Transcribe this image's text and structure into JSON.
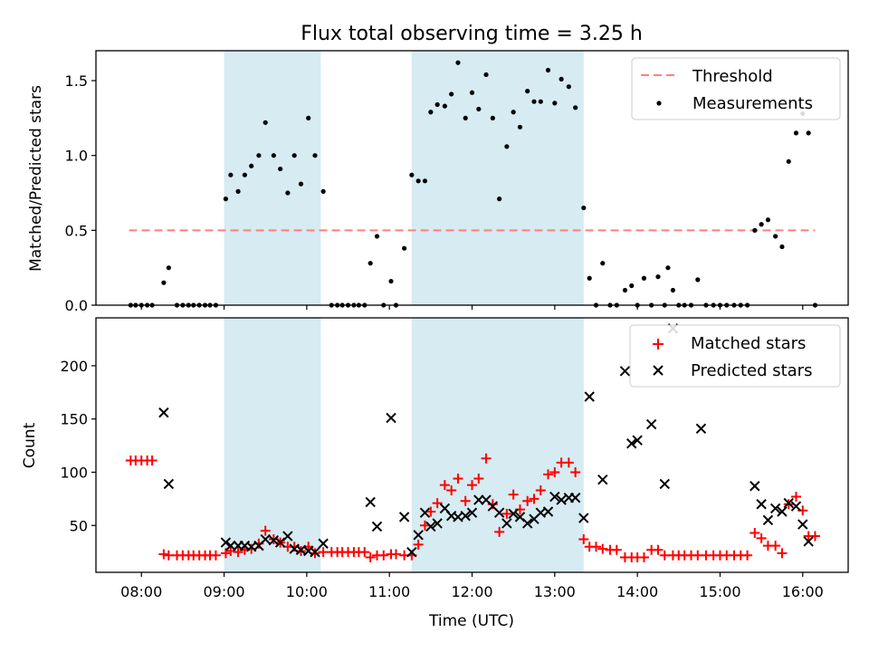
{
  "chart_data": {
    "title": "Flux total observing time = 3.25 h",
    "shaded_intervals_hours": [
      [
        9.0,
        10.17
      ],
      [
        11.27,
        13.35
      ]
    ],
    "x_axis": {
      "label": "Time (UTC)",
      "range_hours": [
        7.45,
        16.55
      ],
      "ticks": [
        {
          "value": 8,
          "label": "08:00"
        },
        {
          "value": 9,
          "label": "09:00"
        },
        {
          "value": 10,
          "label": "10:00"
        },
        {
          "value": 11,
          "label": "11:00"
        },
        {
          "value": 12,
          "label": "12:00"
        },
        {
          "value": 13,
          "label": "13:00"
        },
        {
          "value": 14,
          "label": "14:00"
        },
        {
          "value": 15,
          "label": "15:00"
        },
        {
          "value": 16,
          "label": "16:00"
        }
      ]
    },
    "top_panel": {
      "type": "scatter",
      "ylabel": "Matched/Predicted stars",
      "ylim": [
        0,
        1.7
      ],
      "yticks": [
        {
          "value": 0,
          "label": "0.0"
        },
        {
          "value": 0.5,
          "label": "0.5"
        },
        {
          "value": 1.0,
          "label": "1.0"
        },
        {
          "value": 1.5,
          "label": "1.5"
        }
      ],
      "threshold": {
        "label": "Threshold",
        "value": 0.5,
        "x_range": [
          7.85,
          16.15
        ],
        "color": "#ff7f7f"
      },
      "measurements_label": "Measurements",
      "measurements": [
        [
          7.87,
          0
        ],
        [
          7.93,
          0
        ],
        [
          8.0,
          0
        ],
        [
          8.07,
          0
        ],
        [
          8.13,
          0
        ],
        [
          8.27,
          0.15
        ],
        [
          8.33,
          0.25
        ],
        [
          8.43,
          0
        ],
        [
          8.5,
          0
        ],
        [
          8.57,
          0
        ],
        [
          8.63,
          0
        ],
        [
          8.7,
          0
        ],
        [
          8.77,
          0
        ],
        [
          8.83,
          0
        ],
        [
          8.9,
          0
        ],
        [
          9.02,
          0.71
        ],
        [
          9.08,
          0.87
        ],
        [
          9.17,
          0.76
        ],
        [
          9.25,
          0.87
        ],
        [
          9.33,
          0.93
        ],
        [
          9.42,
          1.0
        ],
        [
          9.5,
          1.22
        ],
        [
          9.6,
          1.0
        ],
        [
          9.68,
          0.91
        ],
        [
          9.77,
          0.75
        ],
        [
          9.85,
          1.0
        ],
        [
          9.93,
          0.81
        ],
        [
          10.02,
          1.25
        ],
        [
          10.1,
          1.0
        ],
        [
          10.2,
          0.76
        ],
        [
          10.3,
          0
        ],
        [
          10.37,
          0
        ],
        [
          10.43,
          0
        ],
        [
          10.5,
          0
        ],
        [
          10.57,
          0
        ],
        [
          10.63,
          0
        ],
        [
          10.7,
          0
        ],
        [
          10.77,
          0.28
        ],
        [
          10.85,
          0.46
        ],
        [
          10.93,
          0
        ],
        [
          11.02,
          0.16
        ],
        [
          11.08,
          0
        ],
        [
          11.18,
          0.38
        ],
        [
          11.27,
          0.87
        ],
        [
          11.35,
          0.83
        ],
        [
          11.43,
          0.83
        ],
        [
          11.5,
          1.29
        ],
        [
          11.58,
          1.34
        ],
        [
          11.67,
          1.33
        ],
        [
          11.75,
          1.41
        ],
        [
          11.83,
          1.62
        ],
        [
          11.92,
          1.25
        ],
        [
          12.0,
          1.42
        ],
        [
          12.08,
          1.31
        ],
        [
          12.17,
          1.54
        ],
        [
          12.25,
          1.25
        ],
        [
          12.33,
          0.71
        ],
        [
          12.42,
          1.06
        ],
        [
          12.5,
          1.29
        ],
        [
          12.58,
          1.19
        ],
        [
          12.67,
          1.43
        ],
        [
          12.75,
          1.36
        ],
        [
          12.83,
          1.36
        ],
        [
          12.92,
          1.57
        ],
        [
          13.0,
          1.35
        ],
        [
          13.08,
          1.51
        ],
        [
          13.17,
          1.46
        ],
        [
          13.25,
          1.32
        ],
        [
          13.35,
          0.65
        ],
        [
          13.42,
          0.18
        ],
        [
          13.5,
          0
        ],
        [
          13.58,
          0.28
        ],
        [
          13.67,
          0
        ],
        [
          13.75,
          0
        ],
        [
          13.85,
          0.1
        ],
        [
          13.93,
          0.13
        ],
        [
          14.0,
          0
        ],
        [
          14.08,
          0.18
        ],
        [
          14.17,
          0
        ],
        [
          14.25,
          0.19
        ],
        [
          14.33,
          0
        ],
        [
          14.37,
          0.25
        ],
        [
          14.43,
          0.1
        ],
        [
          14.5,
          0
        ],
        [
          14.57,
          0
        ],
        [
          14.65,
          0
        ],
        [
          14.73,
          0.17
        ],
        [
          14.83,
          0
        ],
        [
          14.92,
          0
        ],
        [
          15.0,
          0
        ],
        [
          15.08,
          0
        ],
        [
          15.17,
          0
        ],
        [
          15.25,
          0
        ],
        [
          15.33,
          0
        ],
        [
          15.42,
          0.5
        ],
        [
          15.5,
          0.54
        ],
        [
          15.58,
          0.57
        ],
        [
          15.67,
          0.46
        ],
        [
          15.75,
          0.39
        ],
        [
          15.83,
          0.96
        ],
        [
          15.92,
          1.15
        ],
        [
          16.0,
          1.28
        ],
        [
          16.07,
          1.15
        ],
        [
          16.15,
          0
        ]
      ]
    },
    "bottom_panel": {
      "type": "scatter",
      "ylabel": "Count",
      "ylim": [
        6,
        245
      ],
      "yticks": [
        {
          "value": 50,
          "label": "50"
        },
        {
          "value": 100,
          "label": "100"
        },
        {
          "value": 150,
          "label": "150"
        },
        {
          "value": 200,
          "label": "200"
        }
      ],
      "matched": {
        "label": "Matched stars",
        "color": "#ff0000",
        "points": [
          [
            7.87,
            111
          ],
          [
            7.93,
            111
          ],
          [
            8.0,
            111
          ],
          [
            8.07,
            111
          ],
          [
            8.13,
            111
          ],
          [
            8.27,
            23
          ],
          [
            8.33,
            22
          ],
          [
            8.43,
            22
          ],
          [
            8.5,
            22
          ],
          [
            8.57,
            22
          ],
          [
            8.63,
            22
          ],
          [
            8.7,
            22
          ],
          [
            8.77,
            22
          ],
          [
            8.83,
            22
          ],
          [
            8.9,
            22
          ],
          [
            9.02,
            24
          ],
          [
            9.08,
            26
          ],
          [
            9.17,
            25
          ],
          [
            9.25,
            27
          ],
          [
            9.33,
            28
          ],
          [
            9.42,
            33
          ],
          [
            9.5,
            45
          ],
          [
            9.6,
            37
          ],
          [
            9.68,
            34
          ],
          [
            9.77,
            30
          ],
          [
            9.85,
            30
          ],
          [
            9.93,
            26
          ],
          [
            10.02,
            30
          ],
          [
            10.1,
            24
          ],
          [
            10.2,
            25
          ],
          [
            10.3,
            25
          ],
          [
            10.37,
            25
          ],
          [
            10.43,
            25
          ],
          [
            10.5,
            25
          ],
          [
            10.57,
            25
          ],
          [
            10.63,
            25
          ],
          [
            10.7,
            25
          ],
          [
            10.77,
            20
          ],
          [
            10.85,
            22
          ],
          [
            10.93,
            22
          ],
          [
            11.02,
            23
          ],
          [
            11.08,
            23
          ],
          [
            11.18,
            22
          ],
          [
            11.27,
            22
          ],
          [
            11.35,
            32
          ],
          [
            11.43,
            50
          ],
          [
            11.5,
            63
          ],
          [
            11.58,
            71
          ],
          [
            11.67,
            88
          ],
          [
            11.75,
            83
          ],
          [
            11.83,
            94
          ],
          [
            11.92,
            73
          ],
          [
            12.0,
            88
          ],
          [
            12.08,
            94
          ],
          [
            12.17,
            113
          ],
          [
            12.25,
            70
          ],
          [
            12.33,
            44
          ],
          [
            12.42,
            61
          ],
          [
            12.5,
            79
          ],
          [
            12.58,
            65
          ],
          [
            12.67,
            73
          ],
          [
            12.75,
            75
          ],
          [
            12.83,
            83
          ],
          [
            12.92,
            98
          ],
          [
            13.0,
            100
          ],
          [
            13.08,
            109
          ],
          [
            13.17,
            109
          ],
          [
            13.25,
            100
          ],
          [
            13.35,
            37
          ],
          [
            13.42,
            30
          ],
          [
            13.5,
            30
          ],
          [
            13.58,
            28
          ],
          [
            13.67,
            27
          ],
          [
            13.75,
            27
          ],
          [
            13.85,
            20
          ],
          [
            13.93,
            20
          ],
          [
            14.0,
            20
          ],
          [
            14.08,
            20
          ],
          [
            14.17,
            27
          ],
          [
            14.25,
            27
          ],
          [
            14.33,
            22
          ],
          [
            14.43,
            22
          ],
          [
            14.5,
            22
          ],
          [
            14.57,
            22
          ],
          [
            14.65,
            22
          ],
          [
            14.73,
            22
          ],
          [
            14.83,
            22
          ],
          [
            14.92,
            22
          ],
          [
            15.0,
            22
          ],
          [
            15.08,
            22
          ],
          [
            15.17,
            22
          ],
          [
            15.25,
            22
          ],
          [
            15.33,
            22
          ],
          [
            15.42,
            43
          ],
          [
            15.5,
            38
          ],
          [
            15.58,
            31
          ],
          [
            15.67,
            31
          ],
          [
            15.75,
            24
          ],
          [
            15.83,
            70
          ],
          [
            15.92,
            77
          ],
          [
            16.0,
            64
          ],
          [
            16.07,
            40
          ],
          [
            16.15,
            40
          ]
        ]
      },
      "predicted": {
        "label": "Predicted stars",
        "color": "#000000",
        "points": [
          [
            8.27,
            156
          ],
          [
            8.33,
            89
          ],
          [
            9.02,
            34
          ],
          [
            9.08,
            31
          ],
          [
            9.17,
            31
          ],
          [
            9.25,
            31
          ],
          [
            9.33,
            30
          ],
          [
            9.42,
            31
          ],
          [
            9.5,
            37
          ],
          [
            9.6,
            36
          ],
          [
            9.68,
            34
          ],
          [
            9.77,
            40
          ],
          [
            9.85,
            28
          ],
          [
            9.93,
            27
          ],
          [
            10.02,
            26
          ],
          [
            10.1,
            25
          ],
          [
            10.2,
            33
          ],
          [
            10.77,
            72
          ],
          [
            10.85,
            49
          ],
          [
            11.02,
            151
          ],
          [
            11.18,
            58
          ],
          [
            11.27,
            25
          ],
          [
            11.35,
            41
          ],
          [
            11.43,
            62
          ],
          [
            11.5,
            49
          ],
          [
            11.58,
            52
          ],
          [
            11.67,
            66
          ],
          [
            11.75,
            59
          ],
          [
            11.83,
            58
          ],
          [
            11.92,
            59
          ],
          [
            12.0,
            62
          ],
          [
            12.08,
            74
          ],
          [
            12.17,
            74
          ],
          [
            12.25,
            68
          ],
          [
            12.33,
            62
          ],
          [
            12.42,
            52
          ],
          [
            12.5,
            61
          ],
          [
            12.58,
            58
          ],
          [
            12.67,
            52
          ],
          [
            12.75,
            56
          ],
          [
            12.83,
            62
          ],
          [
            12.92,
            63
          ],
          [
            13.0,
            77
          ],
          [
            13.08,
            74
          ],
          [
            13.17,
            76
          ],
          [
            13.25,
            76
          ],
          [
            13.35,
            57
          ],
          [
            13.42,
            171
          ],
          [
            13.58,
            93
          ],
          [
            13.85,
            195
          ],
          [
            13.93,
            127
          ],
          [
            14.0,
            130
          ],
          [
            14.17,
            145
          ],
          [
            14.33,
            89
          ],
          [
            14.43,
            235
          ],
          [
            14.77,
            141
          ],
          [
            15.42,
            87
          ],
          [
            15.5,
            70
          ],
          [
            15.58,
            55
          ],
          [
            15.67,
            66
          ],
          [
            15.75,
            63
          ],
          [
            15.83,
            71
          ],
          [
            15.92,
            68
          ],
          [
            16.0,
            51
          ],
          [
            16.07,
            35
          ]
        ]
      }
    }
  }
}
